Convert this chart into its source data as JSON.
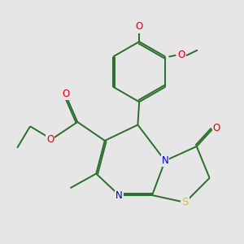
{
  "bg_color": "#e6e6e6",
  "bond_color": "#2a6e2a",
  "atom_colors": {
    "O": "#dd0000",
    "N": "#0000cc",
    "S": "#cccc00",
    "C": "#2a6e2a"
  }
}
